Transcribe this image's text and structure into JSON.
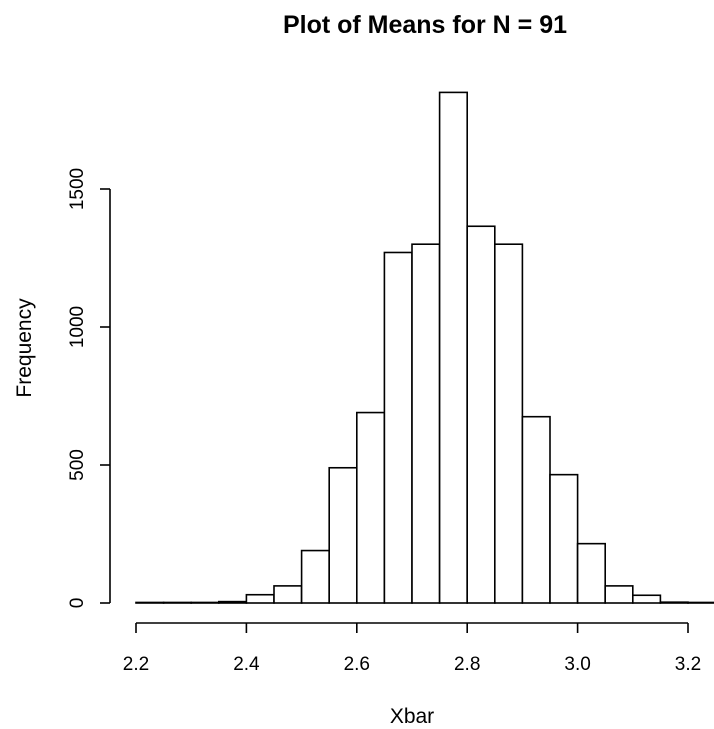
{
  "chart_data": {
    "type": "bar",
    "title": "Plot of Means for N = 91",
    "xlabel": "Xbar",
    "ylabel": "Frequency",
    "xlim": [
      2.2,
      3.25
    ],
    "ylim": [
      0,
      1900
    ],
    "x_ticks": [
      2.2,
      2.4,
      2.6,
      2.8,
      3.0,
      3.2
    ],
    "x_tick_labels": [
      "2.2",
      "2.4",
      "2.6",
      "2.8",
      "3.0",
      "3.2"
    ],
    "y_ticks": [
      0,
      500,
      1000,
      1500
    ],
    "y_tick_labels": [
      "0",
      "500",
      "1000",
      "1500"
    ],
    "bin_width": 0.05,
    "bin_start": 2.2,
    "values": [
      2,
      2,
      2,
      5,
      30,
      62,
      190,
      490,
      690,
      1270,
      1300,
      1850,
      1365,
      1300,
      675,
      465,
      215,
      62,
      28,
      3,
      2
    ],
    "grid": false,
    "legend": "none"
  }
}
